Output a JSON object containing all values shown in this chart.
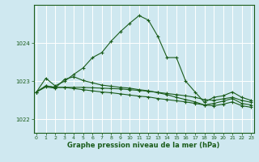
{
  "bg_color": "#cfe8f0",
  "grid_color": "#ffffff",
  "line_color": "#1a5c1a",
  "marker_color": "#1a5c1a",
  "xlabel": "Graphe pression niveau de la mer (hPa)",
  "xlabel_color": "#1a5c1a",
  "ylabel_color": "#1a5c1a",
  "yticks": [
    1022,
    1023,
    1024
  ],
  "xticks": [
    0,
    1,
    2,
    3,
    4,
    5,
    6,
    7,
    8,
    9,
    10,
    11,
    12,
    13,
    14,
    15,
    16,
    17,
    18,
    19,
    20,
    21,
    22,
    23
  ],
  "xlim": [
    -0.3,
    23.3
  ],
  "ylim": [
    1021.65,
    1025.0
  ],
  "series": [
    [
      1022.72,
      1023.08,
      1022.88,
      1023.0,
      1023.18,
      1023.35,
      1023.62,
      1023.75,
      1024.05,
      1024.3,
      1024.52,
      1024.72,
      1024.6,
      1024.18,
      1023.62,
      1023.62,
      1023.0,
      1022.72,
      1022.45,
      1022.58,
      1022.62,
      1022.72,
      1022.58,
      1022.5
    ],
    [
      1022.72,
      1022.88,
      1022.84,
      1022.84,
      1022.84,
      1022.84,
      1022.83,
      1022.82,
      1022.81,
      1022.8,
      1022.78,
      1022.76,
      1022.74,
      1022.71,
      1022.68,
      1022.65,
      1022.62,
      1022.58,
      1022.52,
      1022.5,
      1022.54,
      1022.58,
      1022.5,
      1022.45
    ],
    [
      1022.72,
      1022.88,
      1022.84,
      1022.84,
      1022.81,
      1022.78,
      1022.75,
      1022.72,
      1022.7,
      1022.67,
      1022.64,
      1022.61,
      1022.59,
      1022.55,
      1022.52,
      1022.49,
      1022.46,
      1022.42,
      1022.38,
      1022.36,
      1022.4,
      1022.46,
      1022.36,
      1022.32
    ],
    [
      1022.72,
      1022.85,
      1022.82,
      1023.05,
      1023.12,
      1023.02,
      1022.96,
      1022.9,
      1022.87,
      1022.84,
      1022.82,
      1022.78,
      1022.75,
      1022.7,
      1022.65,
      1022.58,
      1022.52,
      1022.46,
      1022.38,
      1022.42,
      1022.48,
      1022.55,
      1022.42,
      1022.38
    ]
  ]
}
